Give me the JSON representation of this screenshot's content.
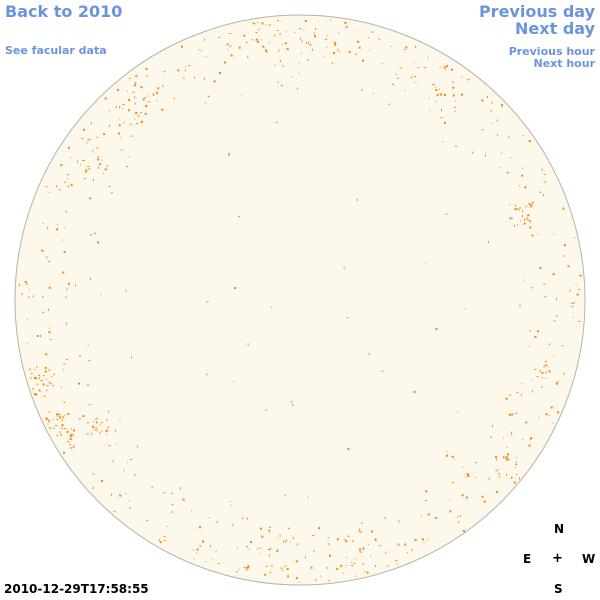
{
  "nav": {
    "back_label": "Back to 2010",
    "facular_label": "See facular data",
    "prev_day_label": "Previous day",
    "next_day_label": "Next day",
    "prev_hour_label": "Previous hour",
    "next_hour_label": "Next hour"
  },
  "timestamp": "2010-12-29T17:58:55",
  "compass": {
    "north": "N",
    "east": "E",
    "center": "+",
    "west": "W",
    "south": "S"
  },
  "colors": {
    "link": "#6c94dd",
    "disk_fill": "#fdf8ec",
    "disk_edge": "#b7b2a8",
    "feature": "#ef8a0c"
  }
}
